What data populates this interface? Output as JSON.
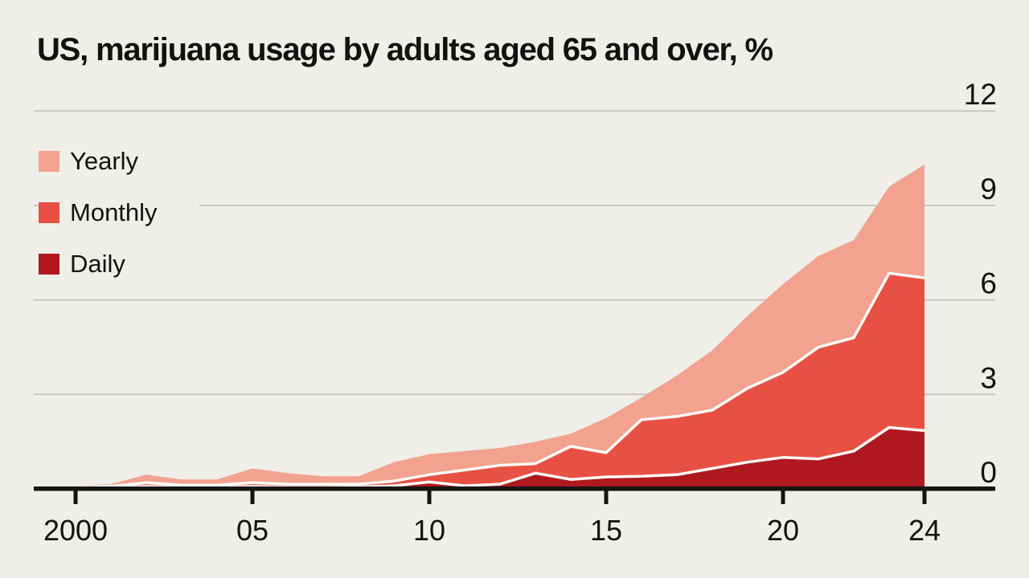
{
  "chart_data": {
    "type": "area",
    "title": "US, marijuana usage by adults aged 65 and over, %",
    "subtitle": "",
    "overlapping_areas": true,
    "years": [
      1999,
      2000,
      2001,
      2002,
      2003,
      2004,
      2005,
      2006,
      2007,
      2008,
      2009,
      2010,
      2011,
      2012,
      2013,
      2014,
      2015,
      2016,
      2017,
      2018,
      2019,
      2020,
      2021,
      2022,
      2023,
      2024
    ],
    "series": [
      {
        "name": "Yearly",
        "color": "#f2a28f",
        "values": [
          0.05,
          0.1,
          0.15,
          0.45,
          0.3,
          0.3,
          0.65,
          0.5,
          0.4,
          0.4,
          0.85,
          1.1,
          1.2,
          1.3,
          1.5,
          1.75,
          2.25,
          2.9,
          3.6,
          4.4,
          5.5,
          6.5,
          7.4,
          7.9,
          9.6,
          10.3
        ]
      },
      {
        "name": "Monthly",
        "color": "#e85043",
        "values": [
          0.03,
          0.05,
          0.08,
          0.2,
          0.12,
          0.12,
          0.2,
          0.15,
          0.15,
          0.15,
          0.25,
          0.45,
          0.6,
          0.75,
          0.8,
          1.35,
          1.15,
          2.2,
          2.3,
          2.5,
          3.2,
          3.7,
          4.5,
          4.8,
          6.85,
          6.7
        ]
      },
      {
        "name": "Daily",
        "color": "#b01820",
        "values": [
          0.02,
          0.02,
          0.03,
          0.08,
          0.05,
          0.05,
          0.08,
          0.05,
          0.05,
          0.06,
          0.1,
          0.22,
          0.1,
          0.15,
          0.5,
          0.3,
          0.38,
          0.4,
          0.45,
          0.65,
          0.85,
          1.0,
          0.95,
          1.2,
          1.95,
          1.85
        ]
      }
    ],
    "ylim": [
      0,
      12
    ],
    "y_ticks": [
      0,
      3,
      6,
      9,
      12
    ],
    "y_tick_labels": [
      "0",
      "3",
      "6",
      "9",
      "12"
    ],
    "y_axis_side": "right",
    "x_tick_years": [
      2000,
      2005,
      2010,
      2015,
      2020,
      2024
    ],
    "x_tick_labels": [
      "2000",
      "05",
      "10",
      "15",
      "20",
      "24"
    ],
    "grid": true,
    "legend_position": "top-left"
  },
  "colors": {
    "background": "#f0eee9",
    "gridline": "#c9c6c0",
    "axis": "#151515",
    "text": "#121212",
    "area_edge_stroke": "#fbfaf6",
    "yearly": "#f2a28f",
    "monthly": "#e85043",
    "daily": "#b01820"
  }
}
